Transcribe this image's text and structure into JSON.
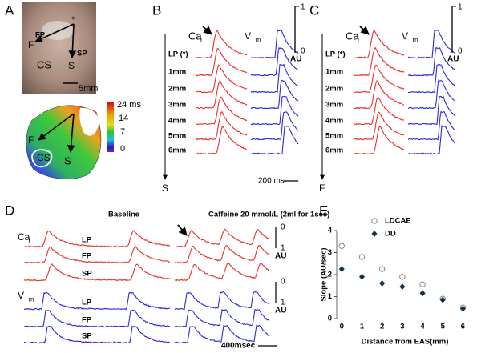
{
  "panel_a": {
    "label": "A",
    "photo_labels": {
      "star": "*",
      "fp": "FP",
      "f": "F",
      "cs": "CS",
      "s": "S",
      "sp": "SP"
    },
    "scale_bar": "5mm",
    "map_labels": {
      "f": "F",
      "cs": "CS",
      "s": "S"
    },
    "colorbar_labels": [
      "24 ms",
      "14",
      "7",
      "0"
    ]
  },
  "panel_b": {
    "label": "B",
    "ca": "Ca",
    "ca_sub": "i",
    "vm": "V",
    "vm_sub": "m",
    "rows": [
      "LP (*)",
      "1mm",
      "2mm",
      "3mm",
      "4mm",
      "5mm",
      "6mm"
    ],
    "scale_top": "1",
    "scale_bottom": "0",
    "scale_unit": "AU",
    "direction": "S",
    "time_scale": "200 ms"
  },
  "panel_c": {
    "label": "C",
    "ca": "Ca",
    "ca_sub": "i",
    "vm": "V",
    "vm_sub": "m",
    "rows": [
      "LP (*)",
      "1mm",
      "2mm",
      "3mm",
      "4mm",
      "5mm",
      "6mm"
    ],
    "scale_top": "1",
    "scale_bottom": "0",
    "scale_unit": "AU",
    "direction": "F"
  },
  "panel_d": {
    "label": "D",
    "baseline": "Baseline",
    "caffeine": "Caffeine 20 mmol/L (2ml for 1sec)",
    "ca": "Ca",
    "ca_sub": "i",
    "vm": "V",
    "vm_sub": "m",
    "ca_rows": [
      "LP",
      "FP",
      "SP"
    ],
    "vm_rows": [
      "LP",
      "FP",
      "SP"
    ],
    "ca_scale": [
      "0",
      "1",
      "AU"
    ],
    "vm_scale": [
      "0",
      "1",
      "AU"
    ],
    "time_scale": "400msec"
  },
  "panel_e": {
    "label": "E"
  },
  "chart_data": {
    "type": "scatter",
    "xlabel": "Distance from EAS(mm)",
    "ylabel": "Slope (AU/sec)",
    "x": [
      0,
      1,
      2,
      3,
      4,
      5,
      6
    ],
    "series": [
      {
        "name": "LDCAE",
        "color": "#888888",
        "marker": "circle",
        "values": [
          3.3,
          2.8,
          2.25,
          1.9,
          1.55,
          0.9,
          0.5
        ]
      },
      {
        "name": "DD",
        "color": "#17324d",
        "marker": "diamond",
        "values": [
          2.25,
          1.9,
          1.6,
          1.45,
          1.15,
          0.85,
          0.45
        ]
      }
    ],
    "xlim": [
      -0.25,
      6.5
    ],
    "ylim": [
      0,
      4
    ],
    "xticks": [
      0,
      1,
      2,
      3,
      4,
      5,
      6
    ],
    "yticks": [
      0,
      1,
      2,
      3,
      4
    ],
    "legend": "top"
  }
}
